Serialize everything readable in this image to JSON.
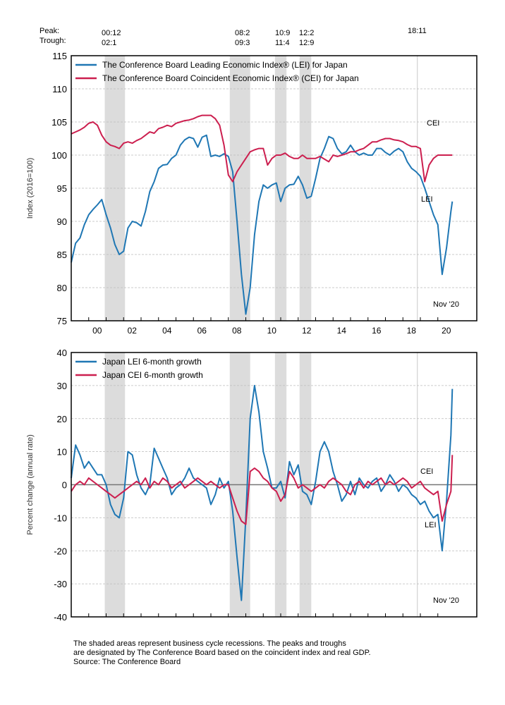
{
  "header": {
    "peak_label": "Peak:",
    "trough_label": "Trough:",
    "turning_points": [
      {
        "peak": "00:12",
        "trough": "02:1"
      },
      {
        "peak": "08:2",
        "trough": "09:3"
      },
      {
        "peak": "10:9",
        "trough": "11:4"
      },
      {
        "peak": "12:2",
        "trough": "12:9"
      },
      {
        "peak": "18:11",
        "trough": ""
      }
    ]
  },
  "footer": {
    "line1": "The shaded areas represent business cycle recessions. The peaks and troughs",
    "line2": "are designated by The Conference Board based on the coincident index and real GDP.",
    "line3": "Source: The Conference Board"
  },
  "colors": {
    "lei": "#1f77b4",
    "cei": "#cc1f4f",
    "shade": "#dcdcdc"
  },
  "chart_data": [
    {
      "type": "line",
      "title": "",
      "ylabel": "Index (2016=100)",
      "xlabel": "",
      "xlim": [
        1999.0,
        2021.0
      ],
      "ylim": [
        75,
        115
      ],
      "yticks": [
        75,
        80,
        85,
        90,
        95,
        100,
        105,
        110,
        115
      ],
      "xticks": [
        "00",
        "02",
        "04",
        "06",
        "08",
        "10",
        "12",
        "14",
        "16",
        "18",
        "20"
      ],
      "recessions": [
        [
          2000.92,
          2002.08
        ],
        [
          2008.08,
          2009.25
        ],
        [
          2010.67,
          2011.33
        ],
        [
          2012.08,
          2012.75
        ]
      ],
      "marker_line": 2018.83,
      "annotation": "Nov '20",
      "series_labels": {
        "lei": "LEI",
        "cei": "CEI"
      },
      "legend": [
        "The Conference Board Leading Economic Index® (LEI) for Japan",
        "The Conference Board Coincident Economic Index® (CEI) for Japan"
      ],
      "grid": true,
      "legend_position": "top-left",
      "x": [
        1999.0,
        1999.25,
        1999.5,
        1999.75,
        2000.0,
        2000.25,
        2000.5,
        2000.75,
        2001.0,
        2001.25,
        2001.5,
        2001.75,
        2002.0,
        2002.25,
        2002.5,
        2002.75,
        2003.0,
        2003.25,
        2003.5,
        2003.75,
        2004.0,
        2004.25,
        2004.5,
        2004.75,
        2005.0,
        2005.25,
        2005.5,
        2005.75,
        2006.0,
        2006.25,
        2006.5,
        2006.75,
        2007.0,
        2007.25,
        2007.5,
        2007.75,
        2008.0,
        2008.25,
        2008.5,
        2008.75,
        2009.0,
        2009.25,
        2009.5,
        2009.75,
        2010.0,
        2010.25,
        2010.5,
        2010.75,
        2011.0,
        2011.25,
        2011.5,
        2011.75,
        2012.0,
        2012.25,
        2012.5,
        2012.75,
        2013.0,
        2013.25,
        2013.5,
        2013.75,
        2014.0,
        2014.25,
        2014.5,
        2014.75,
        2015.0,
        2015.25,
        2015.5,
        2015.75,
        2016.0,
        2016.25,
        2016.5,
        2016.75,
        2017.0,
        2017.25,
        2017.5,
        2017.75,
        2018.0,
        2018.25,
        2018.5,
        2018.75,
        2019.0,
        2019.25,
        2019.5,
        2019.75,
        2020.0,
        2020.25,
        2020.5,
        2020.75,
        2020.83
      ],
      "series": [
        {
          "name": "LEI",
          "values": [
            83.8,
            86.7,
            87.5,
            89.5,
            91.0,
            91.8,
            92.5,
            93.3,
            91.0,
            89.0,
            86.5,
            85.0,
            85.5,
            89.0,
            90.0,
            89.8,
            89.3,
            91.5,
            94.5,
            96.0,
            98.0,
            98.5,
            98.6,
            99.5,
            100.0,
            101.5,
            102.3,
            102.7,
            102.5,
            101.2,
            102.7,
            103.0,
            99.8,
            100.0,
            99.8,
            100.2,
            99.8,
            97.5,
            90.0,
            82.0,
            76.0,
            80.0,
            88.0,
            93.0,
            95.5,
            95.0,
            95.5,
            95.8,
            93.0,
            95.0,
            95.5,
            95.6,
            96.8,
            95.5,
            93.5,
            93.8,
            96.5,
            99.5,
            101.0,
            102.8,
            102.5,
            101.0,
            100.2,
            100.5,
            101.5,
            100.5,
            100.0,
            100.3,
            100.0,
            100.0,
            101.0,
            101.0,
            100.4,
            100.0,
            100.6,
            101.0,
            100.5,
            99.0,
            98.0,
            97.5,
            96.8,
            95.0,
            93.0,
            91.0,
            89.5,
            82.0,
            86.0,
            91.5,
            93.0
          ]
        },
        {
          "name": "CEI",
          "values": [
            103.2,
            103.5,
            103.8,
            104.2,
            104.8,
            105.0,
            104.5,
            103.0,
            102.0,
            101.5,
            101.3,
            101.0,
            101.8,
            102.0,
            101.8,
            102.2,
            102.5,
            103.0,
            103.5,
            103.3,
            104.0,
            104.2,
            104.5,
            104.3,
            104.8,
            105.0,
            105.2,
            105.3,
            105.5,
            105.8,
            106.0,
            106.0,
            106.0,
            105.5,
            104.5,
            101.5,
            97.0,
            96.0,
            97.5,
            98.5,
            99.5,
            100.5,
            100.8,
            101.0,
            101.0,
            98.5,
            99.5,
            100.0,
            100.0,
            100.3,
            99.8,
            99.5,
            99.5,
            100.0,
            99.5,
            99.5,
            99.5,
            99.8,
            99.4,
            99.0,
            100.0,
            99.8,
            100.0,
            100.2,
            100.5,
            100.5,
            100.8,
            101.0,
            101.5,
            102.0,
            102.0,
            102.3,
            102.5,
            102.5,
            102.3,
            102.2,
            102.0,
            101.6,
            101.3,
            101.3,
            101.0,
            96.0,
            98.5,
            99.5,
            100.0,
            100.0,
            100.0,
            100.0,
            100.0
          ]
        }
      ]
    },
    {
      "type": "line",
      "title": "",
      "ylabel": "Percent change (annual rate)",
      "xlabel": "",
      "xlim": [
        1999.0,
        2021.0
      ],
      "ylim": [
        -40,
        40
      ],
      "yticks": [
        -40,
        -30,
        -20,
        -10,
        0,
        10,
        20,
        30,
        40
      ],
      "recessions": [
        [
          2000.92,
          2002.08
        ],
        [
          2008.08,
          2009.25
        ],
        [
          2010.67,
          2011.33
        ],
        [
          2012.08,
          2012.75
        ]
      ],
      "marker_line": 2018.83,
      "annotation": "Nov '20",
      "series_labels": {
        "lei": "LEI",
        "cei": "CEI"
      },
      "legend": [
        "Japan LEI 6-month growth",
        "Japan CEI 6-month growth"
      ],
      "grid": true,
      "legend_position": "top-left",
      "x": [
        1999.0,
        1999.25,
        1999.5,
        1999.75,
        2000.0,
        2000.25,
        2000.5,
        2000.75,
        2001.0,
        2001.25,
        2001.5,
        2001.75,
        2002.0,
        2002.25,
        2002.5,
        2002.75,
        2003.0,
        2003.25,
        2003.5,
        2003.75,
        2004.0,
        2004.25,
        2004.5,
        2004.75,
        2005.0,
        2005.25,
        2005.5,
        2005.75,
        2006.0,
        2006.25,
        2006.5,
        2006.75,
        2007.0,
        2007.25,
        2007.5,
        2007.75,
        2008.0,
        2008.25,
        2008.5,
        2008.75,
        2009.0,
        2009.25,
        2009.5,
        2009.75,
        2010.0,
        2010.25,
        2010.5,
        2010.75,
        2011.0,
        2011.25,
        2011.5,
        2011.75,
        2012.0,
        2012.25,
        2012.5,
        2012.75,
        2013.0,
        2013.25,
        2013.5,
        2013.75,
        2014.0,
        2014.25,
        2014.5,
        2014.75,
        2015.0,
        2015.25,
        2015.5,
        2015.75,
        2016.0,
        2016.25,
        2016.5,
        2016.75,
        2017.0,
        2017.25,
        2017.5,
        2017.75,
        2018.0,
        2018.25,
        2018.5,
        2018.75,
        2019.0,
        2019.25,
        2019.5,
        2019.75,
        2020.0,
        2020.25,
        2020.5,
        2020.75,
        2020.83
      ],
      "series": [
        {
          "name": "LEI 6-month growth",
          "values": [
            2,
            12,
            9,
            5,
            7,
            5,
            3,
            3,
            0,
            -6,
            -9,
            -10,
            -4,
            10,
            9,
            3,
            -1,
            -3,
            0,
            11,
            8,
            5,
            2,
            -3,
            -1,
            0,
            2,
            5,
            2,
            1,
            0,
            -1,
            -6,
            -3,
            2,
            -1,
            1,
            -8,
            -22,
            -35,
            -10,
            20,
            30,
            22,
            10,
            5,
            -1,
            -1,
            1,
            -4,
            7,
            3,
            6,
            -2,
            -3,
            -6,
            1,
            10,
            13,
            10,
            4,
            0,
            -5,
            -3,
            1,
            -3,
            2,
            0,
            -1,
            1,
            2,
            -2,
            0,
            3,
            1,
            -2,
            0,
            -1,
            -3,
            -4,
            -6,
            -5,
            -8,
            -10,
            -9,
            -20,
            -5,
            15,
            29
          ]
        },
        {
          "name": "CEI 6-month growth",
          "values": [
            -2,
            0,
            1,
            0,
            2,
            1,
            0,
            -1,
            -2,
            -3,
            -4,
            -3,
            -2,
            -1,
            0,
            1,
            0,
            2,
            -1,
            1,
            0,
            2,
            1,
            -1,
            0,
            1,
            -1,
            0,
            1,
            2,
            1,
            0,
            1,
            0,
            -1,
            0,
            0,
            -4,
            -8,
            -11,
            -12,
            4,
            5,
            4,
            2,
            1,
            -1,
            -2,
            -5,
            -3,
            4,
            2,
            -1,
            0,
            -1,
            -2,
            -1,
            0,
            -1,
            1,
            2,
            1,
            0,
            -2,
            -3,
            0,
            1,
            -1,
            1,
            0,
            1,
            2,
            0,
            1,
            0,
            1,
            2,
            1,
            -1,
            0,
            1,
            -1,
            -2,
            -3,
            -2,
            -11,
            -6,
            -2,
            9
          ]
        }
      ]
    }
  ]
}
